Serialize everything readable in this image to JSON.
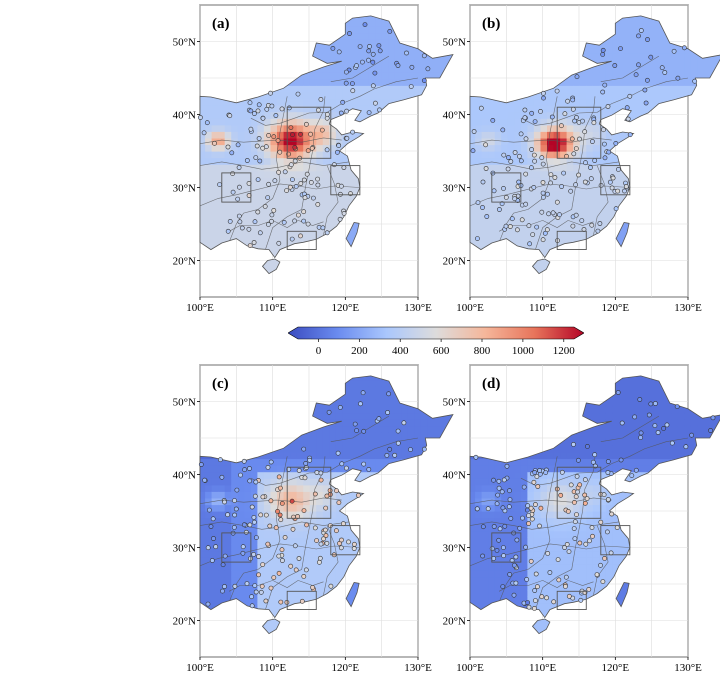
{
  "panels": [
    {
      "label": "(a)",
      "scheme": "hot"
    },
    {
      "label": "(b)",
      "scheme": "warm"
    },
    {
      "label": "(c)",
      "scheme": "cool"
    },
    {
      "label": "(d)",
      "scheme": "cold"
    }
  ],
  "axes": {
    "lon_ticks": [
      "100°E",
      "110°E",
      "120°E",
      "130°E"
    ],
    "lat_ticks": [
      "20°N",
      "30°N",
      "40°N",
      "50°N"
    ],
    "lon_range": [
      100,
      130
    ],
    "lat_range": [
      15,
      55
    ]
  },
  "colorbar": {
    "ticks": [
      "0",
      "200",
      "400",
      "600",
      "800",
      "1000",
      "1200"
    ],
    "min": -100,
    "max": 1250,
    "colors": [
      "#3b4cc0",
      "#6a8bef",
      "#aac7fd",
      "#dddcdc",
      "#f5b69a",
      "#e7745b",
      "#b40426"
    ]
  },
  "chart_data": {
    "type": "heatmap",
    "variable_range": [
      0,
      1200
    ],
    "regions": [
      {
        "name": "North China Plain box",
        "lon": [
          112,
          118
        ],
        "lat": [
          34,
          41
        ]
      },
      {
        "name": "Yangtze River Delta box",
        "lon": [
          118,
          122
        ],
        "lat": [
          29,
          33
        ]
      },
      {
        "name": "Sichuan Basin box",
        "lon": [
          103,
          107
        ],
        "lat": [
          28,
          32
        ]
      },
      {
        "name": "Pearl River Delta box",
        "lon": [
          112,
          116
        ],
        "lat": [
          21.5,
          24
        ]
      }
    ]
  }
}
